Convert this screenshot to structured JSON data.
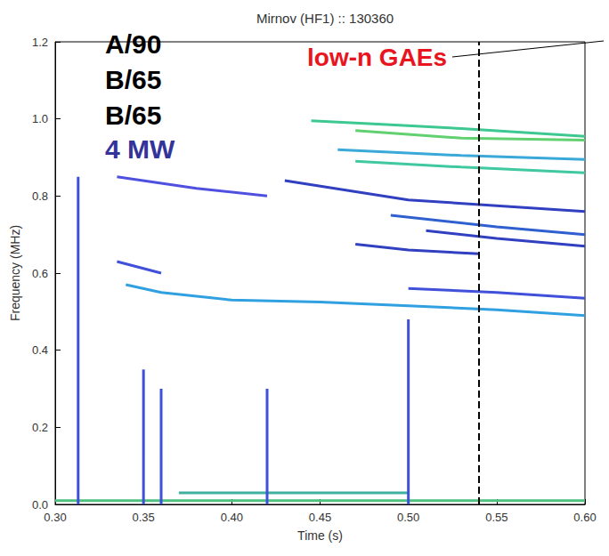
{
  "chart_data": {
    "type": "line",
    "title": "Mirnov (HF1) :: 130360",
    "x_label": "Time (s)",
    "y_label": "Frequency (MHz)",
    "xlim": [
      0.3,
      0.6
    ],
    "xticks": [
      {
        "value": 0.3,
        "label": "0.30"
      },
      0.35,
      {
        "value": 0.4,
        "label": "0.40"
      },
      0.45,
      {
        "value": 0.5,
        "label": "0.50"
      },
      0.55,
      {
        "value": 0.6,
        "label": "0.60"
      }
    ],
    "ylim": [
      0,
      1.2
    ],
    "yticks": [
      {
        "value": 0,
        "label": "0.0"
      },
      0.2,
      0.4,
      0.6,
      0.8,
      {
        "value": 1,
        "label": "1.0"
      },
      1.2
    ],
    "grid": false,
    "vline_x": 0.535,
    "annotations": [
      {
        "text": "A/90",
        "color": "#000000"
      },
      {
        "text": "B/65",
        "color": "#000000"
      },
      {
        "text": "B/65",
        "color": "#000000"
      },
      {
        "text": "4 MW",
        "color": "#33339a"
      },
      {
        "text": "low-n GAEs",
        "color": "#e8141e"
      }
    ],
    "series": [
      {
        "color": "#3cc890",
        "x": [
          0.445,
          0.49,
          0.53,
          0.6
        ],
        "values": [
          0.995,
          0.985,
          0.975,
          0.955
        ]
      },
      {
        "color": "#60d070",
        "x": [
          0.47,
          0.53,
          0.6
        ],
        "values": [
          0.97,
          0.95,
          0.945
        ]
      },
      {
        "color": "#3aa8d8",
        "x": [
          0.46,
          0.53,
          0.6
        ],
        "values": [
          0.92,
          0.905,
          0.895
        ]
      },
      {
        "color": "#40c8a0",
        "x": [
          0.47,
          0.53,
          0.6
        ],
        "values": [
          0.89,
          0.875,
          0.86
        ]
      },
      {
        "color": "#3040c0",
        "x": [
          0.43,
          0.5,
          0.6
        ],
        "values": [
          0.84,
          0.79,
          0.76
        ]
      },
      {
        "color": "#5050e0",
        "x": [
          0.335,
          0.38,
          0.42
        ],
        "values": [
          0.85,
          0.82,
          0.8
        ]
      },
      {
        "color": "#3060d0",
        "x": [
          0.49,
          0.55,
          0.6
        ],
        "values": [
          0.75,
          0.72,
          0.7
        ]
      },
      {
        "color": "#3040c0",
        "x": [
          0.51,
          0.55,
          0.6
        ],
        "values": [
          0.71,
          0.69,
          0.67
        ]
      },
      {
        "color": "#3040c0",
        "x": [
          0.47,
          0.5,
          0.54
        ],
        "values": [
          0.675,
          0.66,
          0.65
        ]
      },
      {
        "color": "#4050d8",
        "x": [
          0.335,
          0.36
        ],
        "values": [
          0.63,
          0.6
        ]
      },
      {
        "color": "#30a0e0",
        "x": [
          0.34,
          0.36,
          0.4,
          0.45,
          0.5,
          0.55,
          0.6
        ],
        "values": [
          0.57,
          0.55,
          0.53,
          0.525,
          0.515,
          0.505,
          0.49
        ]
      },
      {
        "color": "#4050d8",
        "x": [
          0.5,
          0.55,
          0.6
        ],
        "values": [
          0.56,
          0.55,
          0.535
        ]
      },
      {
        "color": "#50c080",
        "x": [
          0.3,
          0.6
        ],
        "values": [
          0.01,
          0.01
        ]
      },
      {
        "color": "#40b0a0",
        "x": [
          0.37,
          0.5
        ],
        "values": [
          0.03,
          0.03
        ]
      },
      {
        "color": "#4050d8",
        "x": [
          0.313,
          0.313
        ],
        "values": [
          0,
          0.85
        ]
      },
      {
        "color": "#4050d8",
        "x": [
          0.35,
          0.35
        ],
        "values": [
          0,
          0.35
        ]
      },
      {
        "color": "#4050d8",
        "x": [
          0.36,
          0.36
        ],
        "values": [
          0,
          0.3
        ]
      },
      {
        "color": "#4050d8",
        "x": [
          0.42,
          0.42
        ],
        "values": [
          0,
          0.3
        ]
      },
      {
        "color": "#4050d8",
        "x": [
          0.5,
          0.5
        ],
        "values": [
          0,
          0.48
        ]
      }
    ]
  }
}
